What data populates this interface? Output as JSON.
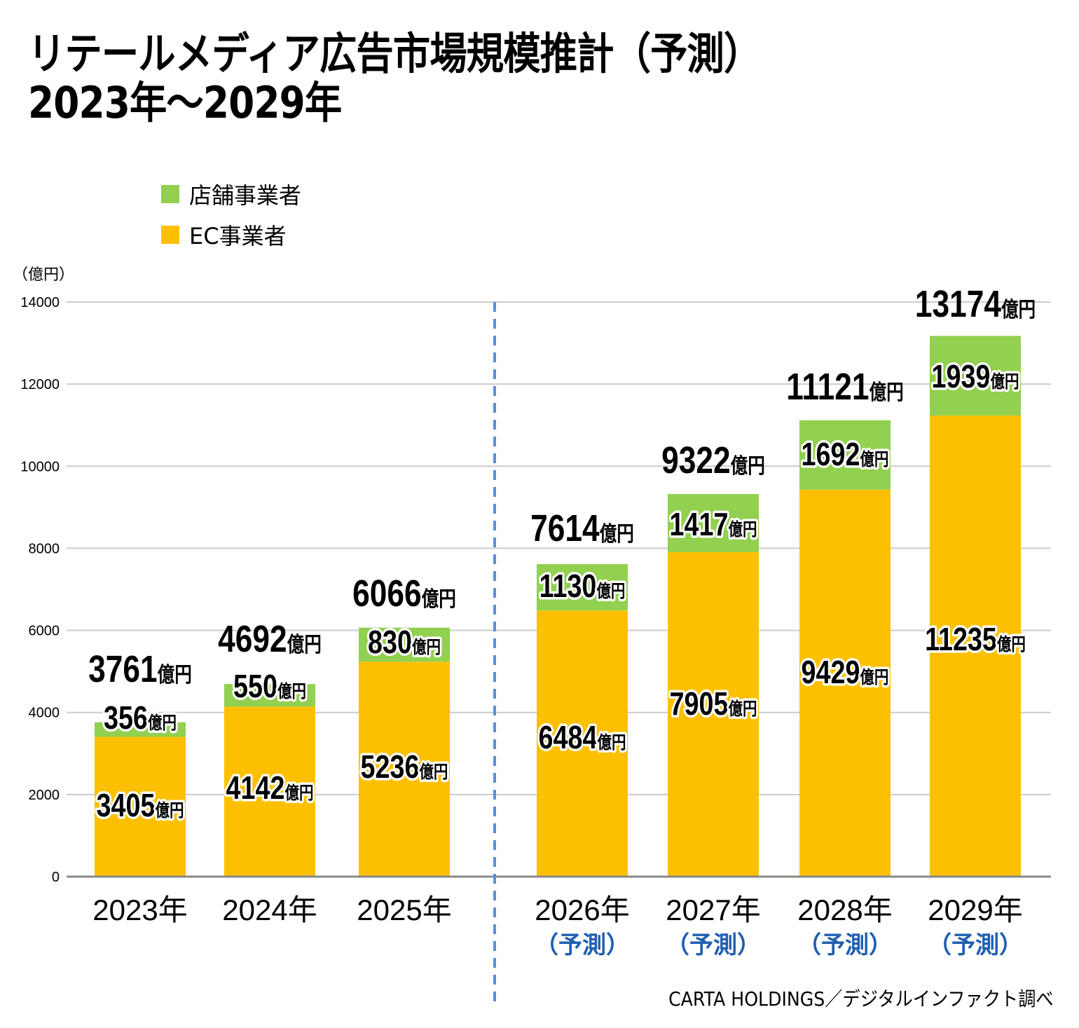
{
  "title": {
    "line1": "リテールメディア広告市場規模推計（予測）",
    "line2": "2023年～2029年"
  },
  "legend": [
    {
      "label": "店舗事業者",
      "color": "#92d050"
    },
    {
      "label": "EC事業者",
      "color": "#fdc000"
    }
  ],
  "unit_label": "（億円）",
  "source": "CARTA HOLDINGS／デジタルインファクト調べ",
  "value_suffix": "億円",
  "colors": {
    "ec": "#fdc000",
    "store": "#92d050",
    "divider": "#5b8fd8",
    "forecast_text": "#1f5fb0",
    "grid": "#cccccc",
    "axis": "#888888"
  },
  "chart_data": {
    "type": "bar",
    "stacked": true,
    "title": "リテールメディア広告市場規模推計（予測） 2023年～2029年",
    "xlabel": "",
    "ylabel": "（億円）",
    "ylim": [
      0,
      14000
    ],
    "yticks": [
      0,
      2000,
      4000,
      6000,
      8000,
      10000,
      12000,
      14000
    ],
    "grid": true,
    "legend_position": "top-left",
    "categories": [
      "2023年",
      "2024年",
      "2025年",
      "2026年",
      "2027年",
      "2028年",
      "2029年"
    ],
    "category_sublabels": [
      "",
      "",
      "",
      "（予測）",
      "（予測）",
      "（予測）",
      "（予測）"
    ],
    "forecast_divider_after": "2025年",
    "series": [
      {
        "name": "EC事業者",
        "color": "#fdc000",
        "values": [
          3405,
          4142,
          5236,
          6484,
          7905,
          9429,
          11235
        ]
      },
      {
        "name": "店舗事業者",
        "color": "#92d050",
        "values": [
          356,
          550,
          830,
          1130,
          1417,
          1692,
          1939
        ]
      }
    ],
    "totals": [
      3761,
      4692,
      6066,
      7614,
      9322,
      11121,
      13174
    ],
    "data_label_suffix": "億円"
  }
}
